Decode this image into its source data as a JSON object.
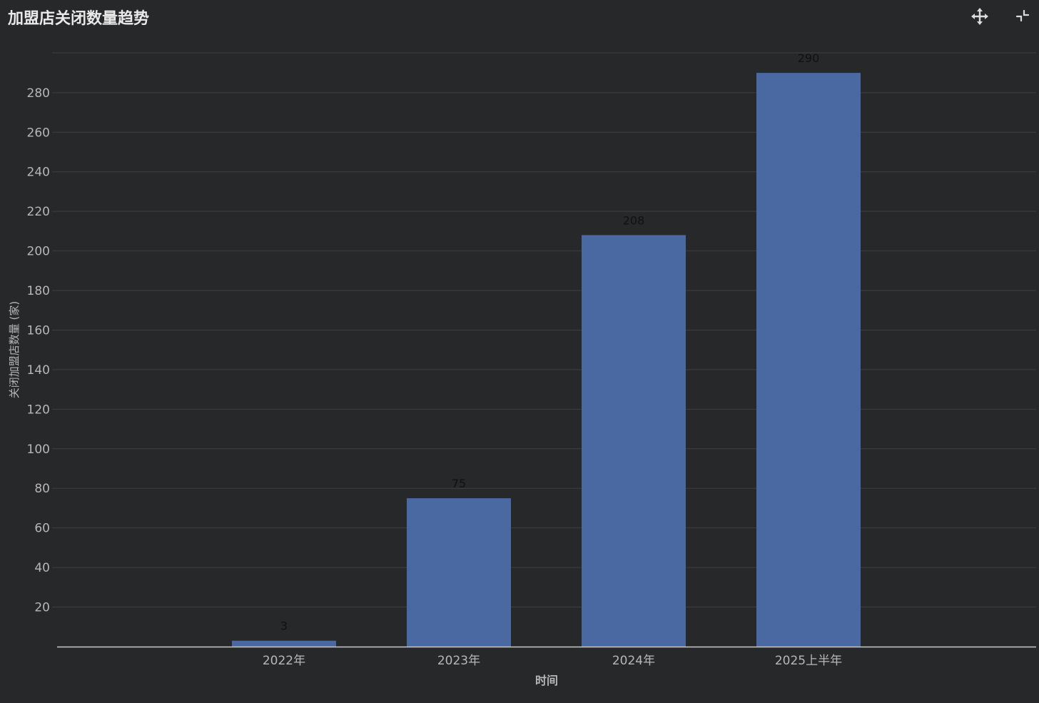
{
  "header": {
    "title": "加盟店关闭数量趋势"
  },
  "toolbar": {
    "icons": [
      "move-arrows-icon",
      "collapse-icon"
    ]
  },
  "colors": {
    "background": "#27282a",
    "bar": "#4a69a3",
    "grid": "#3d3f43",
    "tick_text": "#b7b7b7",
    "label_text": "#111111"
  },
  "chart_data": {
    "type": "bar",
    "categories": [
      "2022年",
      "2023年",
      "2024年",
      "2025上半年"
    ],
    "values": [
      3,
      75,
      208,
      290
    ],
    "title": "加盟店关闭数量趋势",
    "xlabel": "时间",
    "ylabel": "关闭加盟店数量 (家)",
    "ylim": [
      0,
      300
    ],
    "yticks": [
      20,
      40,
      60,
      80,
      100,
      120,
      140,
      160,
      180,
      200,
      220,
      240,
      260,
      280
    ],
    "grid": true,
    "legend": "none",
    "data_labels": [
      "3",
      "75",
      "208",
      "290"
    ]
  }
}
